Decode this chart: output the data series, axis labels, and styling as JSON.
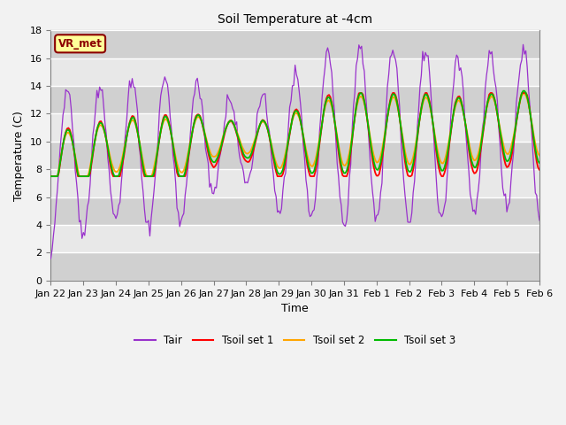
{
  "title": "Soil Temperature at -4cm",
  "xlabel": "Time",
  "ylabel": "Temperature (C)",
  "ylim": [
    0,
    18
  ],
  "yticks": [
    0,
    2,
    4,
    6,
    8,
    10,
    12,
    14,
    16,
    18
  ],
  "xtick_labels": [
    "Jan 22",
    "Jan 23",
    "Jan 24",
    "Jan 25",
    "Jan 26",
    "Jan 27",
    "Jan 28",
    "Jan 29",
    "Jan 30",
    "Jan 31",
    "Feb 1",
    "Feb 2",
    "Feb 3",
    "Feb 4",
    "Feb 5",
    "Feb 6"
  ],
  "annotation_text": "VR_met",
  "annotation_facecolor": "#FFFF99",
  "annotation_edgecolor": "#8B0000",
  "annotation_textcolor": "#8B0000",
  "plot_bg_color": "#DCDCDC",
  "band_color_light": "#E8E8E8",
  "band_color_dark": "#D0D0D0",
  "Tair_color": "#9932CC",
  "Tsoil1_color": "#FF0000",
  "Tsoil2_color": "#FFA500",
  "Tsoil3_color": "#00BB00",
  "legend_labels": [
    "Tair",
    "Tsoil set 1",
    "Tsoil set 2",
    "Tsoil set 3"
  ],
  "n_points": 384
}
